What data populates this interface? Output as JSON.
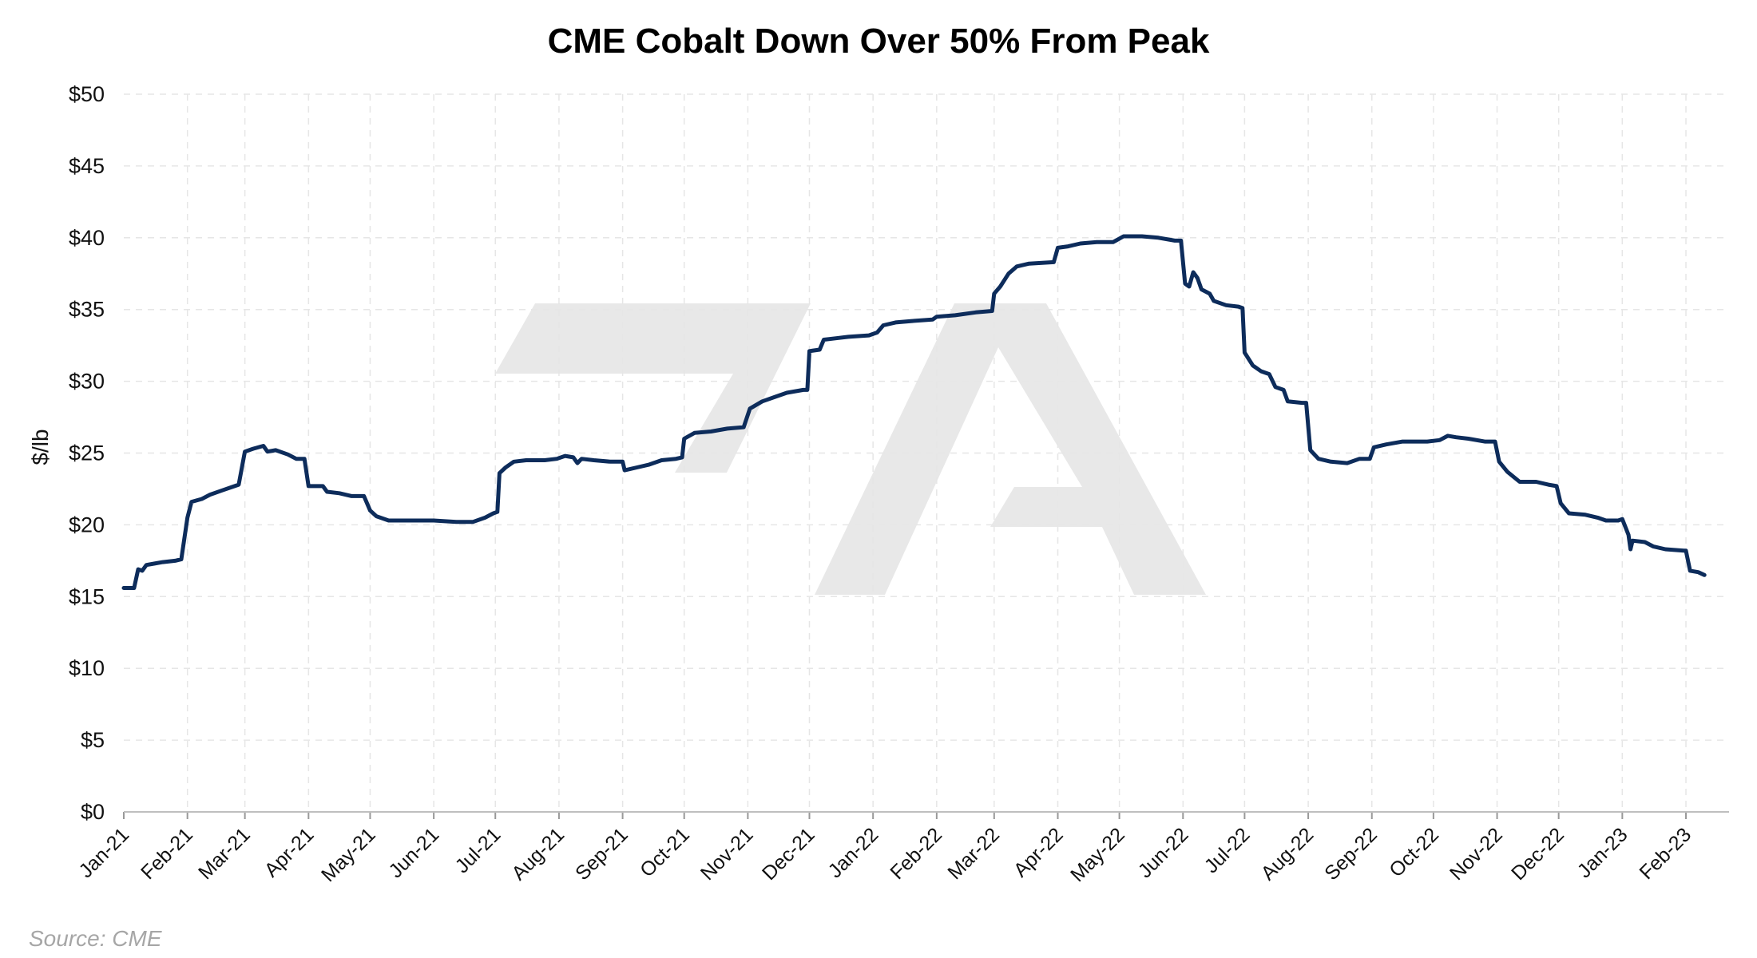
{
  "chart_data": {
    "type": "line",
    "title": "CME Cobalt Down Over 50% From Peak",
    "xlabel": "",
    "ylabel": "$/lb",
    "ylim": [
      0,
      50
    ],
    "yticks": [
      0,
      5,
      10,
      15,
      20,
      25,
      30,
      35,
      40,
      45,
      50
    ],
    "ytick_labels": [
      "$0",
      "$5",
      "$10",
      "$15",
      "$20",
      "$25",
      "$30",
      "$35",
      "$40",
      "$45",
      "$50"
    ],
    "xlim": [
      "2021-01-01",
      "2023-02-22"
    ],
    "x_tick_dates": [
      "2021-01-01",
      "2021-02-01",
      "2021-03-01",
      "2021-04-01",
      "2021-05-01",
      "2021-06-01",
      "2021-07-01",
      "2021-08-01",
      "2021-09-01",
      "2021-10-01",
      "2021-11-01",
      "2021-12-01",
      "2022-01-01",
      "2022-02-01",
      "2022-03-01",
      "2022-04-01",
      "2022-05-01",
      "2022-06-01",
      "2022-07-01",
      "2022-08-01",
      "2022-09-01",
      "2022-10-01",
      "2022-11-01",
      "2022-12-01",
      "2023-01-01",
      "2023-02-01"
    ],
    "x_tick_labels": [
      "Jan-21",
      "Feb-21",
      "Mar-21",
      "Apr-21",
      "May-21",
      "Jun-21",
      "Jul-21",
      "Aug-21",
      "Sep-21",
      "Oct-21",
      "Nov-21",
      "Dec-21",
      "Jan-22",
      "Feb-22",
      "Mar-22",
      "Apr-22",
      "May-22",
      "Jun-22",
      "Jul-22",
      "Aug-22",
      "Sep-22",
      "Oct-22",
      "Nov-22",
      "Dec-22",
      "Jan-23",
      "Feb-23"
    ],
    "grid": true,
    "line_color": "#0d2c5b",
    "series": [
      {
        "points": [
          [
            "2021-01-01",
            15.6
          ],
          [
            "2021-01-06",
            15.6
          ],
          [
            "2021-01-08",
            16.9
          ],
          [
            "2021-01-10",
            16.8
          ],
          [
            "2021-01-12",
            17.2
          ],
          [
            "2021-01-16",
            17.3
          ],
          [
            "2021-01-20",
            17.4
          ],
          [
            "2021-01-26",
            17.5
          ],
          [
            "2021-01-29",
            17.6
          ],
          [
            "2021-02-01",
            20.5
          ],
          [
            "2021-02-03",
            21.6
          ],
          [
            "2021-02-08",
            21.8
          ],
          [
            "2021-02-12",
            22.1
          ],
          [
            "2021-02-18",
            22.4
          ],
          [
            "2021-02-24",
            22.7
          ],
          [
            "2021-02-26",
            22.8
          ],
          [
            "2021-03-01",
            25.1
          ],
          [
            "2021-03-05",
            25.3
          ],
          [
            "2021-03-10",
            25.5
          ],
          [
            "2021-03-12",
            25.1
          ],
          [
            "2021-03-16",
            25.2
          ],
          [
            "2021-03-22",
            24.9
          ],
          [
            "2021-03-26",
            24.6
          ],
          [
            "2021-03-30",
            24.6
          ],
          [
            "2021-04-01",
            22.7
          ],
          [
            "2021-04-08",
            22.7
          ],
          [
            "2021-04-10",
            22.3
          ],
          [
            "2021-04-16",
            22.2
          ],
          [
            "2021-04-22",
            22.0
          ],
          [
            "2021-04-28",
            22.0
          ],
          [
            "2021-05-01",
            21.0
          ],
          [
            "2021-05-04",
            20.6
          ],
          [
            "2021-05-10",
            20.3
          ],
          [
            "2021-05-20",
            20.3
          ],
          [
            "2021-06-01",
            20.3
          ],
          [
            "2021-06-12",
            20.2
          ],
          [
            "2021-06-20",
            20.2
          ],
          [
            "2021-06-26",
            20.5
          ],
          [
            "2021-06-30",
            20.8
          ],
          [
            "2021-07-02",
            20.9
          ],
          [
            "2021-07-03",
            23.6
          ],
          [
            "2021-07-06",
            24.0
          ],
          [
            "2021-07-10",
            24.4
          ],
          [
            "2021-07-16",
            24.5
          ],
          [
            "2021-07-25",
            24.5
          ],
          [
            "2021-07-31",
            24.6
          ],
          [
            "2021-08-04",
            24.8
          ],
          [
            "2021-08-08",
            24.7
          ],
          [
            "2021-08-10",
            24.3
          ],
          [
            "2021-08-12",
            24.6
          ],
          [
            "2021-08-18",
            24.5
          ],
          [
            "2021-08-26",
            24.4
          ],
          [
            "2021-09-01",
            24.4
          ],
          [
            "2021-09-02",
            23.8
          ],
          [
            "2021-09-08",
            24.0
          ],
          [
            "2021-09-14",
            24.2
          ],
          [
            "2021-09-20",
            24.5
          ],
          [
            "2021-09-27",
            24.6
          ],
          [
            "2021-09-30",
            24.7
          ],
          [
            "2021-10-01",
            26.0
          ],
          [
            "2021-10-06",
            26.4
          ],
          [
            "2021-10-14",
            26.5
          ],
          [
            "2021-10-22",
            26.7
          ],
          [
            "2021-10-30",
            26.8
          ],
          [
            "2021-11-02",
            28.1
          ],
          [
            "2021-11-08",
            28.6
          ],
          [
            "2021-11-14",
            28.9
          ],
          [
            "2021-11-20",
            29.2
          ],
          [
            "2021-11-28",
            29.4
          ],
          [
            "2021-11-30",
            29.4
          ],
          [
            "2021-12-01",
            32.1
          ],
          [
            "2021-12-06",
            32.2
          ],
          [
            "2021-12-08",
            32.9
          ],
          [
            "2021-12-14",
            33.0
          ],
          [
            "2021-12-20",
            33.1
          ],
          [
            "2021-12-30",
            33.2
          ],
          [
            "2022-01-03",
            33.4
          ],
          [
            "2022-01-06",
            33.9
          ],
          [
            "2022-01-12",
            34.1
          ],
          [
            "2022-01-20",
            34.2
          ],
          [
            "2022-01-30",
            34.3
          ],
          [
            "2022-02-01",
            34.5
          ],
          [
            "2022-02-10",
            34.6
          ],
          [
            "2022-02-20",
            34.8
          ],
          [
            "2022-02-28",
            34.9
          ],
          [
            "2022-03-01",
            36.1
          ],
          [
            "2022-03-04",
            36.6
          ],
          [
            "2022-03-08",
            37.5
          ],
          [
            "2022-03-12",
            38.0
          ],
          [
            "2022-03-18",
            38.2
          ],
          [
            "2022-03-30",
            38.3
          ],
          [
            "2022-04-01",
            39.3
          ],
          [
            "2022-04-06",
            39.4
          ],
          [
            "2022-04-12",
            39.6
          ],
          [
            "2022-04-20",
            39.7
          ],
          [
            "2022-04-28",
            39.7
          ],
          [
            "2022-05-03",
            40.1
          ],
          [
            "2022-05-12",
            40.1
          ],
          [
            "2022-05-20",
            40.0
          ],
          [
            "2022-05-28",
            39.8
          ],
          [
            "2022-05-31",
            39.8
          ],
          [
            "2022-06-02",
            36.8
          ],
          [
            "2022-06-04",
            36.6
          ],
          [
            "2022-06-06",
            37.6
          ],
          [
            "2022-06-08",
            37.2
          ],
          [
            "2022-06-10",
            36.4
          ],
          [
            "2022-06-14",
            36.1
          ],
          [
            "2022-06-16",
            35.6
          ],
          [
            "2022-06-22",
            35.3
          ],
          [
            "2022-06-28",
            35.2
          ],
          [
            "2022-06-30",
            35.1
          ],
          [
            "2022-07-01",
            32.0
          ],
          [
            "2022-07-05",
            31.1
          ],
          [
            "2022-07-09",
            30.7
          ],
          [
            "2022-07-13",
            30.5
          ],
          [
            "2022-07-16",
            29.6
          ],
          [
            "2022-07-20",
            29.4
          ],
          [
            "2022-07-22",
            28.6
          ],
          [
            "2022-07-29",
            28.5
          ],
          [
            "2022-07-31",
            28.5
          ],
          [
            "2022-08-02",
            25.2
          ],
          [
            "2022-08-06",
            24.6
          ],
          [
            "2022-08-12",
            24.4
          ],
          [
            "2022-08-20",
            24.3
          ],
          [
            "2022-08-26",
            24.6
          ],
          [
            "2022-08-31",
            24.6
          ],
          [
            "2022-09-02",
            25.4
          ],
          [
            "2022-09-08",
            25.6
          ],
          [
            "2022-09-16",
            25.8
          ],
          [
            "2022-09-28",
            25.8
          ],
          [
            "2022-10-04",
            25.9
          ],
          [
            "2022-10-08",
            26.2
          ],
          [
            "2022-10-12",
            26.1
          ],
          [
            "2022-10-18",
            26.0
          ],
          [
            "2022-10-26",
            25.8
          ],
          [
            "2022-10-31",
            25.8
          ],
          [
            "2022-11-02",
            24.4
          ],
          [
            "2022-11-06",
            23.7
          ],
          [
            "2022-11-12",
            23.0
          ],
          [
            "2022-11-20",
            23.0
          ],
          [
            "2022-11-26",
            22.8
          ],
          [
            "2022-11-30",
            22.7
          ],
          [
            "2022-12-02",
            21.5
          ],
          [
            "2022-12-06",
            20.8
          ],
          [
            "2022-12-14",
            20.7
          ],
          [
            "2022-12-20",
            20.5
          ],
          [
            "2022-12-24",
            20.3
          ],
          [
            "2022-12-30",
            20.3
          ],
          [
            "2023-01-01",
            20.4
          ],
          [
            "2023-01-04",
            19.3
          ],
          [
            "2023-01-05",
            18.3
          ],
          [
            "2023-01-06",
            18.9
          ],
          [
            "2023-01-12",
            18.8
          ],
          [
            "2023-01-16",
            18.5
          ],
          [
            "2023-01-22",
            18.3
          ],
          [
            "2023-01-31",
            18.2
          ],
          [
            "2023-02-01",
            18.2
          ],
          [
            "2023-02-03",
            16.8
          ],
          [
            "2023-02-07",
            16.7
          ],
          [
            "2023-02-10",
            16.5
          ]
        ]
      }
    ],
    "source": "Source: CME"
  }
}
